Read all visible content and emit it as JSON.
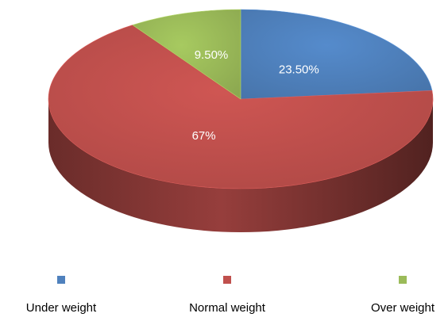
{
  "chart_data": {
    "type": "pie",
    "title": "",
    "style": "3d",
    "categories": [
      "Under weight",
      "Normal weight",
      "Over weight"
    ],
    "values": [
      23.5,
      67,
      9.5
    ],
    "data_labels": [
      "23.50%",
      "67%",
      "9.50%"
    ],
    "colors": [
      "#4f81bd",
      "#c0504d",
      "#9bbb59"
    ],
    "legend_position": "bottom"
  }
}
